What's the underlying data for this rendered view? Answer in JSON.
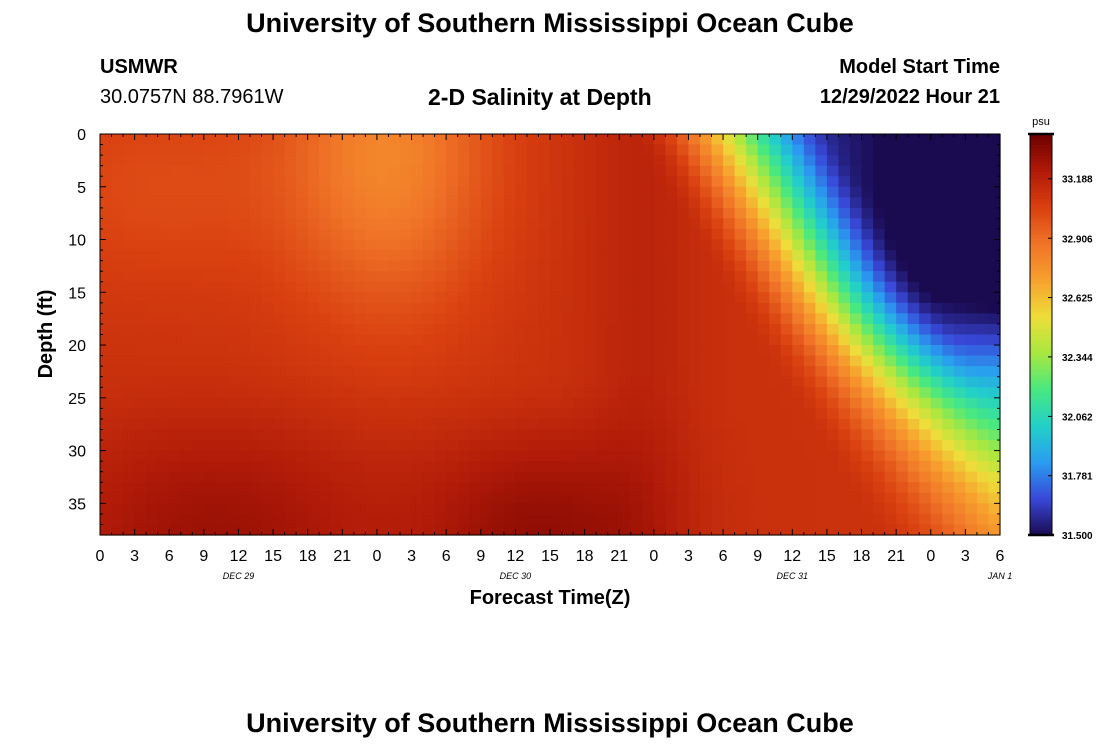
{
  "page": {
    "title": "University of Southern Mississippi Ocean Cube",
    "footer_title": "University of Southern Mississippi Ocean Cube",
    "station": "USMWR",
    "coords": "30.0757N  88.7961W",
    "plot_title": "2-D Salinity at Depth",
    "model_start_label": "Model Start Time",
    "model_start_value": "12/29/2022 Hour 21"
  },
  "chart_data": {
    "type": "heatmap",
    "title": "2-D Salinity at Depth",
    "xlabel": "Forecast Time(Z)",
    "ylabel": "Depth (ft)",
    "x_hours": [
      0,
      78
    ],
    "x_tick_labels": [
      "0",
      "3",
      "6",
      "9",
      "12",
      "15",
      "18",
      "21",
      "0",
      "3",
      "6",
      "9",
      "12",
      "15",
      "18",
      "21",
      "0",
      "3",
      "6",
      "9",
      "12",
      "15",
      "18",
      "21",
      "0",
      "3",
      "6"
    ],
    "date_labels": [
      {
        "hour": 12,
        "label": "DEC 29"
      },
      {
        "hour": 36,
        "label": "DEC 30"
      },
      {
        "hour": 60,
        "label": "DEC 31"
      },
      {
        "hour": 78,
        "label": "JAN 1"
      }
    ],
    "ylim": [
      38,
      0
    ],
    "y_ticks": [
      0,
      5,
      10,
      15,
      20,
      25,
      30,
      35
    ],
    "colorbar": {
      "unit": "psu",
      "range": [
        31.5,
        33.4
      ],
      "tick_values": [
        31.5,
        31.781,
        32.062,
        32.344,
        32.625,
        32.906,
        33.188
      ],
      "tick_labels": [
        "31.500",
        "31.781",
        "32.062",
        "32.344",
        "32.625",
        "32.906",
        "33.188"
      ],
      "colors": [
        "#1a0a50",
        "#3848d8",
        "#2a9cf0",
        "#22d0c8",
        "#48e880",
        "#a8e840",
        "#eedd3a",
        "#f7a12e",
        "#f07428",
        "#d94010",
        "#b01a08",
        "#6e0000"
      ]
    }
  }
}
